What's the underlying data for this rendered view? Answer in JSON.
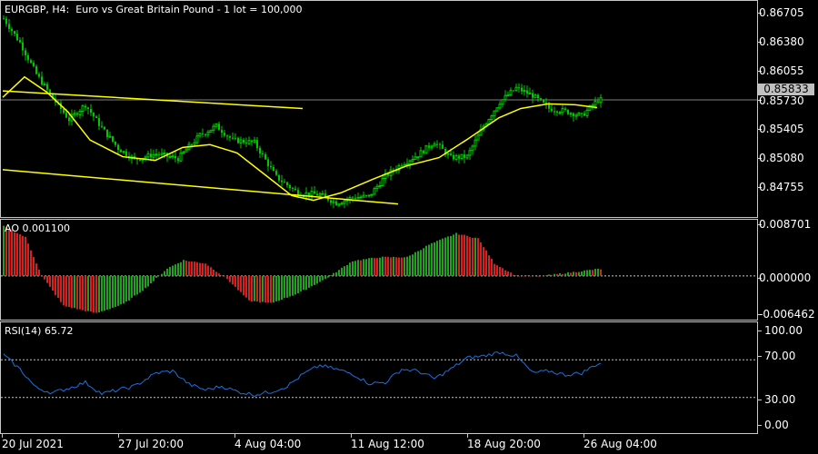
{
  "chart_header": {
    "symbol_line": "EURGBP, H4:  Euro vs Great Britain Pound - 1 lot = 100,000"
  },
  "colors": {
    "background": "#000000",
    "bull_candle": "#00c800",
    "bear_candle": "#00c800",
    "moving_average": "#ffff00",
    "trend_line": "#ffff00",
    "ao_up": "#21a021",
    "ao_down": "#d22222",
    "rsi_line": "#1e6fd9",
    "grid_dotted": "#c8c8c8",
    "axis_text": "#ffffff"
  },
  "price_axis": {
    "labels": [
      "0.86705",
      "0.86380",
      "0.86055",
      "0.85730",
      "0.85405",
      "0.85080",
      "0.84755"
    ],
    "current_price": "0.85833"
  },
  "ao_panel": {
    "title": "AO 0.001100",
    "axis_labels": [
      "0.008701",
      "0.000000",
      "-0.006462"
    ]
  },
  "rsi_panel": {
    "title": "RSI(14) 65.72",
    "axis_labels": [
      "100.00",
      "70.00",
      "30.00",
      "0.00"
    ]
  },
  "time_axis": {
    "labels": [
      "20 Jul 2021",
      "27 Jul 20:00",
      "4 Aug 04:00",
      "11 Aug 12:00",
      "18 Aug 20:00",
      "26 Aug 04:00"
    ]
  },
  "chart_data": [
    {
      "type": "candlestick",
      "series_name": "EURGBP, H4",
      "x_labels": [
        "20 Jul 2021",
        "27 Jul 20:00",
        "4 Aug 04:00",
        "11 Aug 12:00",
        "18 Aug 20:00",
        "26 Aug 04:00"
      ],
      "ylim": [
        0.8455,
        0.869
      ],
      "close_path": [
        [
          0,
          0.8671
        ],
        [
          6,
          0.8645
        ],
        [
          12,
          0.8611
        ],
        [
          18,
          0.8585
        ],
        [
          24,
          0.8562
        ],
        [
          30,
          0.8578
        ],
        [
          36,
          0.8553
        ],
        [
          42,
          0.8531
        ],
        [
          48,
          0.8519
        ],
        [
          56,
          0.8525
        ],
        [
          64,
          0.852
        ],
        [
          72,
          0.8545
        ],
        [
          78,
          0.8555
        ],
        [
          84,
          0.854
        ],
        [
          92,
          0.8537
        ],
        [
          100,
          0.85
        ],
        [
          108,
          0.8483
        ],
        [
          116,
          0.8481
        ],
        [
          122,
          0.8472
        ],
        [
          128,
          0.8478
        ],
        [
          134,
          0.8479
        ],
        [
          140,
          0.8501
        ],
        [
          146,
          0.8514
        ],
        [
          152,
          0.8524
        ],
        [
          158,
          0.8538
        ],
        [
          164,
          0.8521
        ],
        [
          170,
          0.8522
        ],
        [
          176,
          0.8555
        ],
        [
          182,
          0.8581
        ],
        [
          188,
          0.8596
        ],
        [
          194,
          0.8588
        ],
        [
          200,
          0.8574
        ],
        [
          206,
          0.8571
        ],
        [
          212,
          0.8566
        ],
        [
          218,
          0.8583
        ]
      ],
      "moving_average": [
        [
          0,
          0.8586
        ],
        [
          8,
          0.8608
        ],
        [
          16,
          0.8592
        ],
        [
          24,
          0.857
        ],
        [
          32,
          0.854
        ],
        [
          44,
          0.8522
        ],
        [
          56,
          0.8518
        ],
        [
          66,
          0.8532
        ],
        [
          76,
          0.8535
        ],
        [
          86,
          0.8526
        ],
        [
          96,
          0.8503
        ],
        [
          106,
          0.848
        ],
        [
          114,
          0.8475
        ],
        [
          124,
          0.8483
        ],
        [
          136,
          0.8498
        ],
        [
          148,
          0.8512
        ],
        [
          160,
          0.8521
        ],
        [
          170,
          0.854
        ],
        [
          182,
          0.8564
        ],
        [
          190,
          0.8574
        ],
        [
          200,
          0.8579
        ],
        [
          210,
          0.8578
        ],
        [
          218,
          0.8575
        ]
      ],
      "trend_lines": [
        {
          "from": [
            0,
            0.8593
          ],
          "to": [
            110,
            0.8574
          ]
        },
        {
          "from": [
            0,
            0.8508
          ],
          "to": [
            145,
            0.8471
          ]
        }
      ]
    },
    {
      "type": "bar",
      "series_name": "AO",
      "ylim": [
        -0.0073,
        0.009
      ],
      "values_path": [
        [
          0,
          0.008
        ],
        [
          8,
          0.0062
        ],
        [
          14,
          0.0
        ],
        [
          22,
          -0.0048
        ],
        [
          34,
          -0.006
        ],
        [
          44,
          -0.0045
        ],
        [
          52,
          -0.002
        ],
        [
          60,
          0.0012
        ],
        [
          66,
          0.0025
        ],
        [
          74,
          0.002
        ],
        [
          82,
          -0.0005
        ],
        [
          90,
          -0.004
        ],
        [
          98,
          -0.0044
        ],
        [
          108,
          -0.0028
        ],
        [
          118,
          -0.0005
        ],
        [
          128,
          0.0024
        ],
        [
          138,
          0.003
        ],
        [
          148,
          0.003
        ],
        [
          156,
          0.005
        ],
        [
          166,
          0.0068
        ],
        [
          174,
          0.006
        ],
        [
          180,
          0.002
        ],
        [
          188,
          0.0
        ],
        [
          196,
          -0.0001
        ],
        [
          218,
          0.0011
        ]
      ]
    },
    {
      "type": "line",
      "series_name": "RSI(14)",
      "ylim": [
        0,
        100
      ],
      "levels": [
        70,
        30
      ],
      "values_path": [
        [
          0,
          75
        ],
        [
          6,
          60
        ],
        [
          12,
          40
        ],
        [
          18,
          35
        ],
        [
          24,
          40
        ],
        [
          30,
          46
        ],
        [
          36,
          34
        ],
        [
          42,
          38
        ],
        [
          48,
          42
        ],
        [
          56,
          56
        ],
        [
          62,
          58
        ],
        [
          68,
          44
        ],
        [
          74,
          38
        ],
        [
          80,
          42
        ],
        [
          86,
          36
        ],
        [
          92,
          33
        ],
        [
          98,
          36
        ],
        [
          104,
          42
        ],
        [
          110,
          55
        ],
        [
          116,
          64
        ],
        [
          122,
          60
        ],
        [
          128,
          55
        ],
        [
          134,
          45
        ],
        [
          140,
          46
        ],
        [
          146,
          60
        ],
        [
          152,
          58
        ],
        [
          158,
          50
        ],
        [
          164,
          60
        ],
        [
          170,
          72
        ],
        [
          176,
          74
        ],
        [
          182,
          78
        ],
        [
          188,
          74
        ],
        [
          194,
          56
        ],
        [
          200,
          58
        ],
        [
          206,
          54
        ],
        [
          212,
          56
        ],
        [
          218,
          66
        ]
      ]
    }
  ]
}
